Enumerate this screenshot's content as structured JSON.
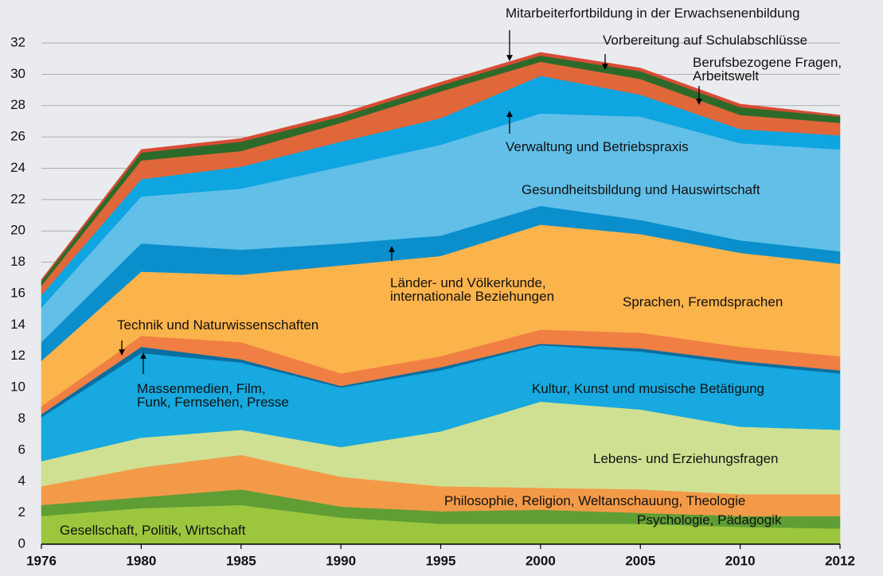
{
  "chart_data": {
    "type": "stacked_area",
    "categories": [
      "1976",
      "1980",
      "1985",
      "1990",
      "1995",
      "2000",
      "2005",
      "2010",
      "2012"
    ],
    "ylim": [
      0,
      32
    ],
    "yticks": [
      0,
      2,
      4,
      6,
      8,
      10,
      12,
      14,
      16,
      18,
      20,
      22,
      24,
      26,
      28,
      30,
      32
    ],
    "grid": true,
    "series": [
      {
        "name": "Gesellschaft, Politik, Wirtschaft",
        "color": "#9cc63e",
        "values": [
          1.8,
          2.3,
          2.5,
          1.7,
          1.3,
          1.3,
          1.3,
          1.1,
          1.0
        ]
      },
      {
        "name": "Psychologie,  Pädagogik",
        "color": "#5f9e35",
        "values": [
          0.7,
          0.7,
          1.0,
          0.7,
          0.8,
          0.9,
          0.7,
          0.7,
          0.8
        ]
      },
      {
        "name": "Philosophie, Religion, Weltanschauung, Theologie",
        "color": "#f39a48",
        "values": [
          1.2,
          1.9,
          2.2,
          1.9,
          1.6,
          1.4,
          1.5,
          1.4,
          1.4
        ]
      },
      {
        "name": "Lebens- und Erziehungsfragen",
        "color": "#cfe093",
        "values": [
          1.6,
          1.9,
          1.6,
          1.9,
          3.5,
          5.5,
          5.1,
          4.3,
          4.1
        ]
      },
      {
        "name": "Kultur, Kunst und musische Betätigung",
        "color": "#17a9df",
        "values": [
          2.8,
          5.4,
          4.3,
          3.8,
          3.9,
          3.6,
          3.7,
          4.0,
          3.6
        ]
      },
      {
        "name": "Massenmedien, Film,\nFunk, Fernsehen, Presse",
        "color": "#0a6ea0",
        "values": [
          0.2,
          0.4,
          0.2,
          0.1,
          0.2,
          0.1,
          0.2,
          0.2,
          0.2
        ]
      },
      {
        "name": "Technik und Naturwissenschaften",
        "color": "#f07f43",
        "values": [
          0.5,
          0.7,
          1.1,
          0.8,
          0.7,
          0.9,
          1.0,
          0.9,
          0.9
        ]
      },
      {
        "name": "Sprachen, Fremdsprachen",
        "color": "#fbb34c",
        "values": [
          2.9,
          4.1,
          4.3,
          6.9,
          6.4,
          6.7,
          6.3,
          6.0,
          5.9
        ]
      },
      {
        "name": "Länder- und Völkerkunde,\ninternationale Beziehungen",
        "color": "#0a8fcc",
        "values": [
          1.2,
          1.8,
          1.6,
          1.4,
          1.3,
          1.2,
          0.9,
          0.8,
          0.8
        ]
      },
      {
        "name": "Gesundheitsbildung und Hauswirtschaft",
        "color": "#62bfe8",
        "values": [
          2.2,
          3.0,
          3.9,
          4.9,
          5.8,
          5.9,
          6.6,
          6.2,
          6.5
        ]
      },
      {
        "name": "Verwaltung und Betriebspraxis",
        "color": "#0ea5e0",
        "values": [
          0.8,
          1.1,
          1.4,
          1.6,
          1.7,
          2.4,
          1.4,
          0.9,
          0.9
        ]
      },
      {
        "name": "Berufsbezogene Fragen,\nArbeitswelt",
        "color": "#e0673a",
        "values": [
          0.6,
          1.2,
          1.0,
          1.2,
          1.7,
          0.9,
          1.0,
          0.9,
          0.8
        ]
      },
      {
        "name": "Vorbereitung auf Schulabschlüsse",
        "color": "#2d6a2a",
        "values": [
          0.3,
          0.5,
          0.6,
          0.4,
          0.4,
          0.4,
          0.5,
          0.5,
          0.4
        ]
      },
      {
        "name": "Mitarbeiterfortbildung in der Erwachsenenbildung",
        "color": "#d94b35",
        "values": [
          0.1,
          0.2,
          0.2,
          0.2,
          0.2,
          0.2,
          0.2,
          0.2,
          0.1
        ]
      }
    ]
  }
}
